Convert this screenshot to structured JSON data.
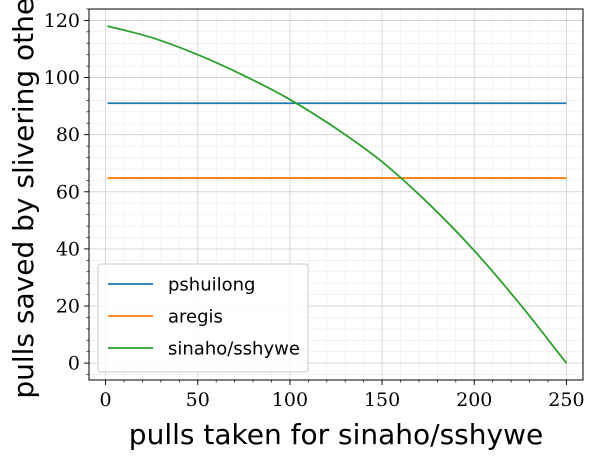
{
  "chart_data": {
    "type": "line",
    "title": "",
    "xlabel": "pulls taken for sinaho/sshywe",
    "ylabel": "pulls saved by slivering other",
    "xlim": [
      -9,
      259
    ],
    "ylim": [
      -5.9,
      124
    ],
    "xticks": [
      0,
      50,
      100,
      150,
      200,
      250
    ],
    "yticks": [
      0,
      20,
      40,
      60,
      80,
      100,
      120
    ],
    "grid": true,
    "minor_grid": true,
    "legend_position": "lower-left",
    "series": [
      {
        "name": "pshuilong",
        "color": "#1f77b4",
        "x": [
          1,
          250
        ],
        "y": [
          91,
          91
        ]
      },
      {
        "name": "aregis",
        "color": "#ff7f0e",
        "x": [
          1,
          250
        ],
        "y": [
          64.8,
          64.8
        ]
      },
      {
        "name": "sinaho/sshywe",
        "color": "#2ca02c",
        "x": [
          1,
          25,
          50,
          75,
          100,
          125,
          150,
          175,
          200,
          225,
          250
        ],
        "y": [
          118.0,
          114.0,
          108.0,
          100.7,
          92.3,
          82.2,
          70.5,
          56.0,
          39.4,
          20.5,
          0
        ]
      }
    ]
  }
}
